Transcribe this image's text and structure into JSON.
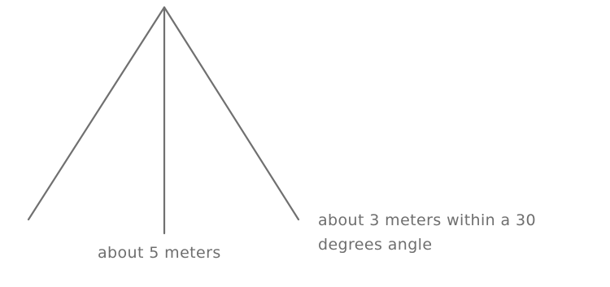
{
  "labels": {
    "center_line": "about 5 meters",
    "side_line": "about 3 meters within a 30 degrees angle"
  },
  "colors": {
    "line": "#707070",
    "text": "#6e6e6e",
    "background": "#ffffff"
  }
}
